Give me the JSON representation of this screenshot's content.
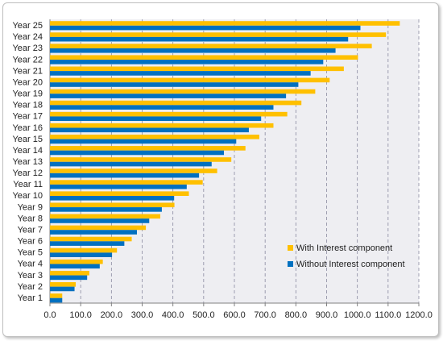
{
  "chart_data": {
    "type": "bar",
    "orientation": "horizontal",
    "categories": [
      "Year 1",
      "Year 2",
      "Year 3",
      "Year 4",
      "Year 5",
      "Year 6",
      "Year 7",
      "Year 8",
      "Year 9",
      "Year 10",
      "Year 11",
      "Year 12",
      "Year 13",
      "Year 14",
      "Year 15",
      "Year 16",
      "Year 17",
      "Year 18",
      "Year 19",
      "Year 20",
      "Year 21",
      "Year 22",
      "Year 23",
      "Year 24",
      "Year 25"
    ],
    "series": [
      {
        "name": "With Interest component",
        "color": "#ffc000",
        "values": [
          40,
          84,
          128,
          172,
          218,
          266,
          312,
          359,
          405,
          452,
          497,
          544,
          590,
          636,
          681,
          727,
          772,
          818,
          863,
          910,
          956,
          1002,
          1047,
          1093,
          1138
        ]
      },
      {
        "name": "Without Interest component",
        "color": "#0070c0",
        "values": [
          40,
          80,
          121,
          162,
          202,
          242,
          283,
          323,
          364,
          404,
          445,
          485,
          526,
          566,
          606,
          647,
          687,
          727,
          768,
          808,
          848,
          889,
          929,
          970,
          1010
        ]
      }
    ],
    "xlim": [
      0,
      1200
    ],
    "xticks": [
      "0.0",
      "100.0",
      "200.0",
      "300.0",
      "400.0",
      "500.0",
      "600.0",
      "700.0",
      "800.0",
      "900.0",
      "1000.0",
      "1100.0",
      "1200.0"
    ],
    "grid": "vertical-dashed",
    "legend_position": "bottom-right",
    "title": "",
    "xlabel": "",
    "ylabel": ""
  }
}
